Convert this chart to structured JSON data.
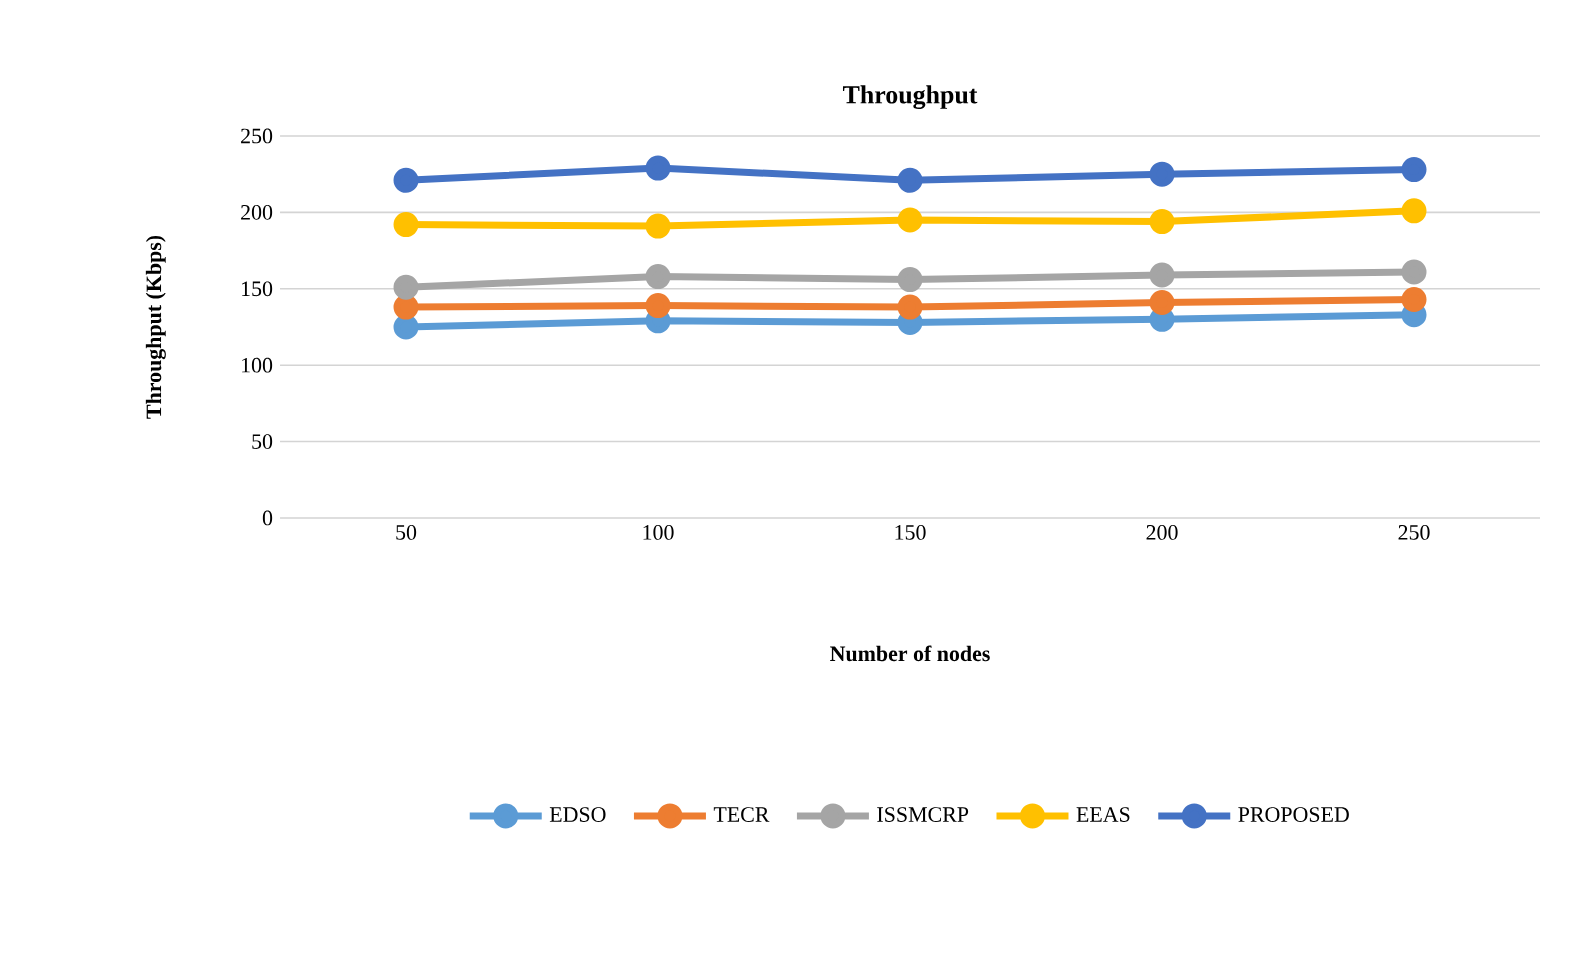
{
  "chart_data": {
    "type": "line",
    "title": "Throughput",
    "xlabel": "Number of nodes",
    "ylabel": "Throughput (Kbps)",
    "categories": [
      "50",
      "100",
      "150",
      "200",
      "250"
    ],
    "series": [
      {
        "name": "EDSO",
        "color": "#5b9bd5",
        "values": [
          125,
          129,
          128,
          130,
          133
        ]
      },
      {
        "name": "TECR",
        "color": "#ed7d31",
        "values": [
          138,
          139,
          138,
          141,
          143
        ]
      },
      {
        "name": "ISSMCRP",
        "color": "#a5a5a5",
        "values": [
          151,
          158,
          156,
          159,
          161
        ]
      },
      {
        "name": "EEAS",
        "color": "#ffc000",
        "values": [
          192,
          191,
          195,
          194,
          201
        ]
      },
      {
        "name": "PROPOSED",
        "color": "#4472c4",
        "values": [
          221,
          229,
          221,
          225,
          228
        ]
      }
    ],
    "ylim": [
      0,
      250
    ],
    "yticks": [
      0,
      50,
      100,
      150,
      200,
      250
    ],
    "grid": "y",
    "legend": "bottom",
    "marker": "circle",
    "line_style": "solid"
  }
}
